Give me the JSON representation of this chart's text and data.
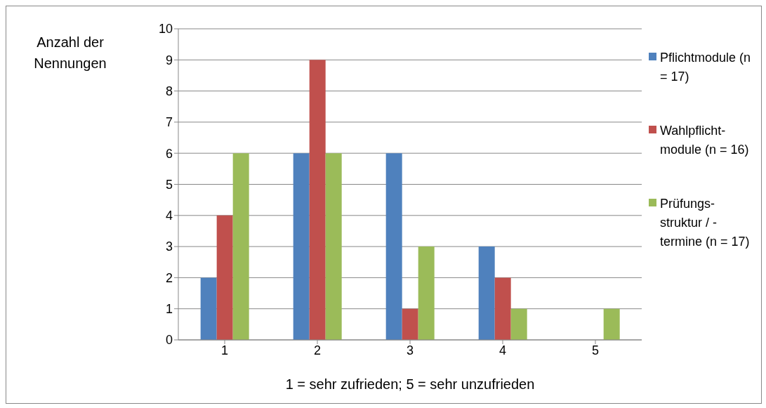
{
  "chart_data": {
    "type": "bar",
    "ylabel": "Anzahl der Nennungen",
    "xlabel": "1 = sehr zufrieden; 5 = sehr unzufrieden",
    "categories": [
      "1",
      "2",
      "3",
      "4",
      "5"
    ],
    "series": [
      {
        "name": "Pflichtmodule (n = 17)",
        "color": "#4f81bd",
        "values": [
          2,
          6,
          6,
          3,
          0
        ]
      },
      {
        "name": "Wahlpflicht-module (n = 16)",
        "color": "#c0504d",
        "values": [
          4,
          9,
          1,
          2,
          0
        ]
      },
      {
        "name": "Prüfungs-struktur / -termine (n = 17)",
        "color": "#9bbb59",
        "values": [
          6,
          6,
          3,
          1,
          1
        ]
      }
    ],
    "ylim": [
      0,
      10
    ],
    "yticks": [
      0,
      1,
      2,
      3,
      4,
      5,
      6,
      7,
      8,
      9,
      10
    ],
    "grid": "y",
    "legend": "right"
  }
}
